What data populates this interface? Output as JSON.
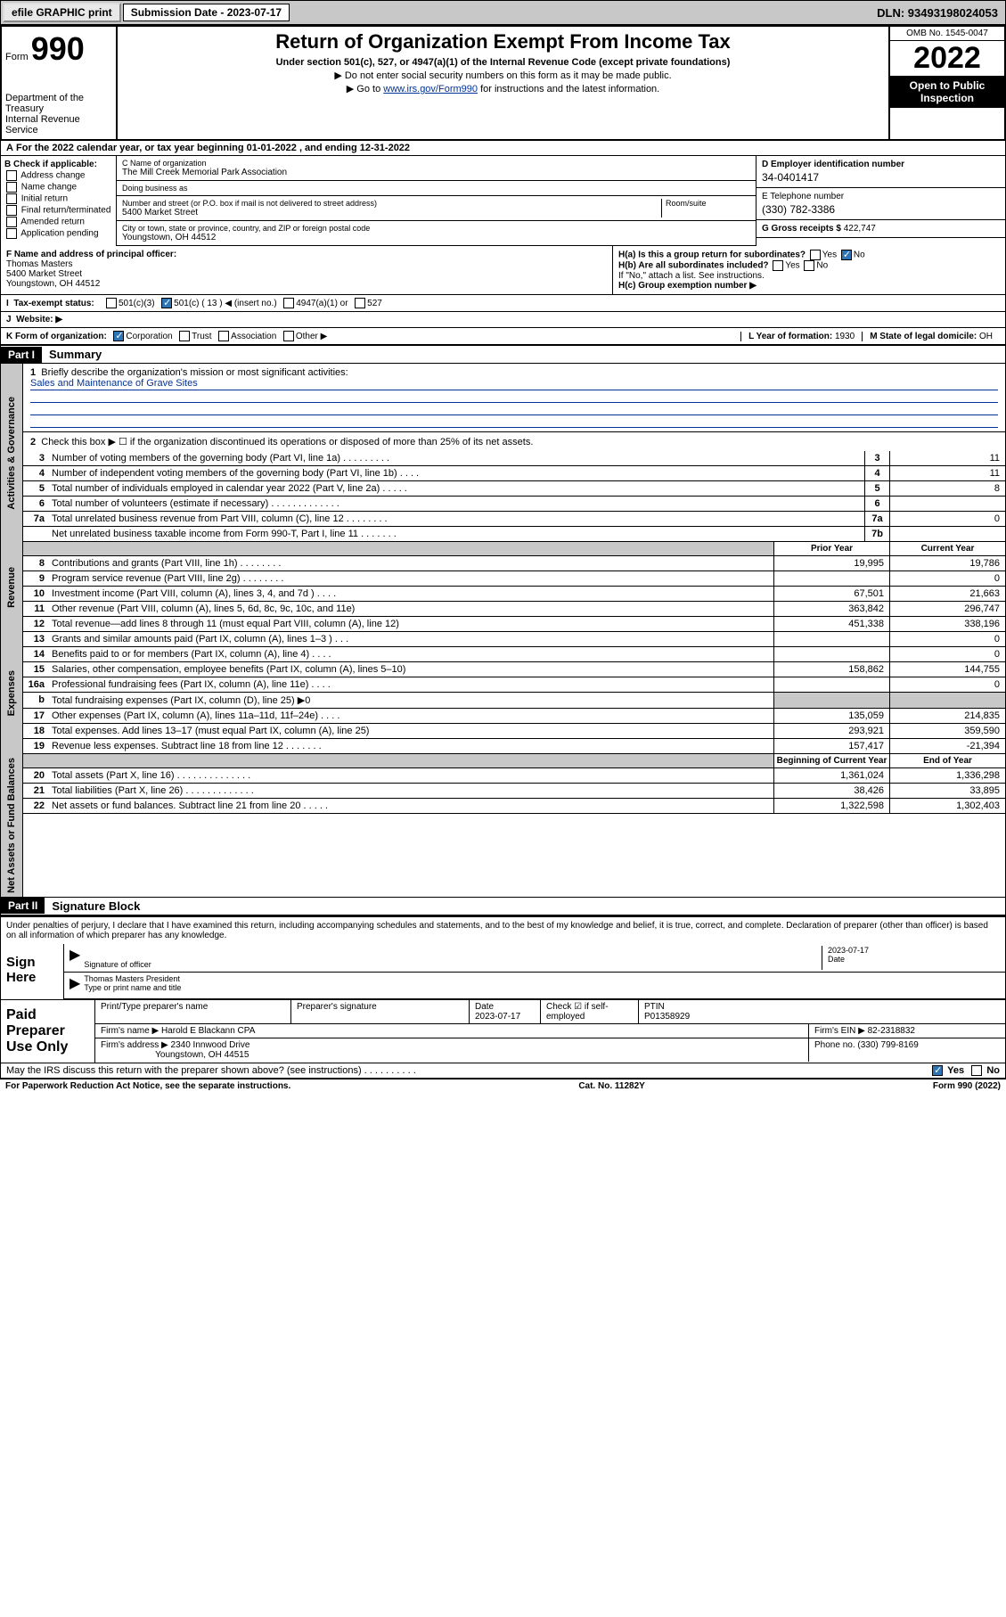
{
  "topbar": {
    "efile": "efile GRAPHIC print",
    "submission_label": "Submission Date - 2023-07-17",
    "dln": "DLN: 93493198024053"
  },
  "header": {
    "form_label": "Form",
    "form_num": "990",
    "dept": "Department of the Treasury\nInternal Revenue Service",
    "title": "Return of Organization Exempt From Income Tax",
    "subtitle": "Under section 501(c), 527, or 4947(a)(1) of the Internal Revenue Code (except private foundations)",
    "note1": "▶ Do not enter social security numbers on this form as it may be made public.",
    "note2_pre": "▶ Go to ",
    "note2_link": "www.irs.gov/Form990",
    "note2_post": " for instructions and the latest information.",
    "omb": "OMB No. 1545-0047",
    "year": "2022",
    "inspect": "Open to Public Inspection"
  },
  "row_a": "For the 2022 calendar year, or tax year beginning 01-01-2022   , and ending 12-31-2022",
  "col_b": {
    "title": "B Check if applicable:",
    "opts": [
      "Address change",
      "Name change",
      "Initial return",
      "Final return/terminated",
      "Amended return",
      "Application pending"
    ]
  },
  "col_c": {
    "name_label": "C Name of organization",
    "name": "The Mill Creek Memorial Park Association",
    "dba_label": "Doing business as",
    "dba": "",
    "addr_label": "Number and street (or P.O. box if mail is not delivered to street address)",
    "room_label": "Room/suite",
    "addr": "5400 Market Street",
    "city_label": "City or town, state or province, country, and ZIP or foreign postal code",
    "city": "Youngstown, OH  44512"
  },
  "col_d": {
    "ein_label": "D Employer identification number",
    "ein": "34-0401417",
    "phone_label": "E Telephone number",
    "phone": "(330) 782-3386",
    "gross_label": "G Gross receipts $",
    "gross": "422,747"
  },
  "section_f": {
    "label": "F Name and address of principal officer:",
    "name": "Thomas Masters",
    "addr1": "5400 Market Street",
    "addr2": "Youngstown, OH  44512",
    "ha": "H(a)  Is this a group return for subordinates?",
    "ha_no": "No",
    "hb": "H(b)  Are all subordinates included?",
    "hb_note": "If \"No,\" attach a list. See instructions.",
    "hc": "H(c)  Group exemption number ▶"
  },
  "tax_status": {
    "label": "Tax-exempt status:",
    "c3": "501(c)(3)",
    "c": "501(c) ( 13 ) ◀ (insert no.)",
    "a1": "4947(a)(1) or",
    "s527": "527"
  },
  "website_label": "Website: ▶",
  "row_k": {
    "label": "K Form of organization:",
    "corp": "Corporation",
    "trust": "Trust",
    "assoc": "Association",
    "other": "Other ▶",
    "year_label": "L Year of formation:",
    "year": "1930",
    "state_label": "M State of legal domicile:",
    "state": "OH"
  },
  "part1": {
    "header": "Part I",
    "title": "Summary",
    "q1": "Briefly describe the organization's mission or most significant activities:",
    "mission": "Sales and Maintenance of Grave Sites",
    "q2": "Check this box ▶ ☐  if the organization discontinued its operations or disposed of more than 25% of its net assets.",
    "sides": {
      "ag": "Activities & Governance",
      "rev": "Revenue",
      "exp": "Expenses",
      "nab": "Net Assets or Fund Balances"
    },
    "rows_ag": [
      {
        "n": "3",
        "d": "Number of voting members of the governing body (Part VI, line 1a)  .  .  .  .  .  .  .  .  .",
        "bn": "3",
        "v": "11"
      },
      {
        "n": "4",
        "d": "Number of independent voting members of the governing body (Part VI, line 1b)  .  .  .  .",
        "bn": "4",
        "v": "11"
      },
      {
        "n": "5",
        "d": "Total number of individuals employed in calendar year 2022 (Part V, line 2a)  .  .  .  .  .",
        "bn": "5",
        "v": "8"
      },
      {
        "n": "6",
        "d": "Total number of volunteers (estimate if necessary)  .  .  .  .  .  .  .  .  .  .  .  .  .",
        "bn": "6",
        "v": ""
      },
      {
        "n": "7a",
        "d": "Total unrelated business revenue from Part VIII, column (C), line 12  .  .  .  .  .  .  .  .",
        "bn": "7a",
        "v": "0"
      },
      {
        "n": "",
        "d": "Net unrelated business taxable income from Form 990-T, Part I, line 11  .  .  .  .  .  .  .",
        "bn": "7b",
        "v": ""
      }
    ],
    "hdr_prior": "Prior Year",
    "hdr_current": "Current Year",
    "rows_rev": [
      {
        "n": "8",
        "d": "Contributions and grants (Part VIII, line 1h)  .  .  .  .  .  .  .  .",
        "v1": "19,995",
        "v2": "19,786"
      },
      {
        "n": "9",
        "d": "Program service revenue (Part VIII, line 2g)  .  .  .  .  .  .  .  .",
        "v1": "",
        "v2": "0"
      },
      {
        "n": "10",
        "d": "Investment income (Part VIII, column (A), lines 3, 4, and 7d )  .  .  .  .",
        "v1": "67,501",
        "v2": "21,663"
      },
      {
        "n": "11",
        "d": "Other revenue (Part VIII, column (A), lines 5, 6d, 8c, 9c, 10c, and 11e)",
        "v1": "363,842",
        "v2": "296,747"
      },
      {
        "n": "12",
        "d": "Total revenue—add lines 8 through 11 (must equal Part VIII, column (A), line 12)",
        "v1": "451,338",
        "v2": "338,196"
      }
    ],
    "rows_exp": [
      {
        "n": "13",
        "d": "Grants and similar amounts paid (Part IX, column (A), lines 1–3 )  .  .  .",
        "v1": "",
        "v2": "0"
      },
      {
        "n": "14",
        "d": "Benefits paid to or for members (Part IX, column (A), line 4)  .  .  .  .",
        "v1": "",
        "v2": "0"
      },
      {
        "n": "15",
        "d": "Salaries, other compensation, employee benefits (Part IX, column (A), lines 5–10)",
        "v1": "158,862",
        "v2": "144,755"
      },
      {
        "n": "16a",
        "d": "Professional fundraising fees (Part IX, column (A), line 11e)  .  .  .  .",
        "v1": "",
        "v2": "0"
      },
      {
        "n": "b",
        "d": "Total fundraising expenses (Part IX, column (D), line 25) ▶0",
        "v1": "shade",
        "v2": "shade"
      },
      {
        "n": "17",
        "d": "Other expenses (Part IX, column (A), lines 11a–11d, 11f–24e)  .  .  .  .",
        "v1": "135,059",
        "v2": "214,835"
      },
      {
        "n": "18",
        "d": "Total expenses. Add lines 13–17 (must equal Part IX, column (A), line 25)",
        "v1": "293,921",
        "v2": "359,590"
      },
      {
        "n": "19",
        "d": "Revenue less expenses. Subtract line 18 from line 12  .  .  .  .  .  .  .",
        "v1": "157,417",
        "v2": "-21,394"
      }
    ],
    "hdr_begin": "Beginning of Current Year",
    "hdr_end": "End of Year",
    "rows_nab": [
      {
        "n": "20",
        "d": "Total assets (Part X, line 16)  .  .  .  .  .  .  .  .  .  .  .  .  .  .",
        "v1": "1,361,024",
        "v2": "1,336,298"
      },
      {
        "n": "21",
        "d": "Total liabilities (Part X, line 26)  .  .  .  .  .  .  .  .  .  .  .  .  .",
        "v1": "38,426",
        "v2": "33,895"
      },
      {
        "n": "22",
        "d": "Net assets or fund balances. Subtract line 21 from line 20  .  .  .  .  .",
        "v1": "1,322,598",
        "v2": "1,302,403"
      }
    ]
  },
  "part2": {
    "header": "Part II",
    "title": "Signature Block",
    "text": "Under penalties of perjury, I declare that I have examined this return, including accompanying schedules and statements, and to the best of my knowledge and belief, it is true, correct, and complete. Declaration of preparer (other than officer) is based on all information of which preparer has any knowledge.",
    "sign_here": "Sign Here",
    "sig_officer": "Signature of officer",
    "sig_date": "2023-07-17",
    "date_label": "Date",
    "officer_name": "Thomas Masters  President",
    "officer_label": "Type or print name and title",
    "paid_prep": "Paid Preparer Use Only",
    "prep_name_label": "Print/Type preparer's name",
    "prep_sig_label": "Preparer's signature",
    "prep_date_label": "Date",
    "prep_date": "2023-07-17",
    "check_label": "Check ☑ if self-employed",
    "ptin_label": "PTIN",
    "ptin": "P01358929",
    "firm_name_label": "Firm's name    ▶",
    "firm_name": "Harold E Blackann CPA",
    "firm_ein_label": "Firm's EIN ▶",
    "firm_ein": "82-2318832",
    "firm_addr_label": "Firm's address ▶",
    "firm_addr": "2340 Innwood Drive",
    "firm_city": "Youngstown, OH  44515",
    "firm_phone_label": "Phone no.",
    "firm_phone": "(330) 799-8169",
    "discuss": "May the IRS discuss this return with the preparer shown above? (see instructions)  .  .  .  .  .  .  .  .  .  .",
    "yes": "Yes",
    "no": "No"
  },
  "footer": {
    "left": "For Paperwork Reduction Act Notice, see the separate instructions.",
    "mid": "Cat. No. 11282Y",
    "right": "Form 990 (2022)"
  }
}
